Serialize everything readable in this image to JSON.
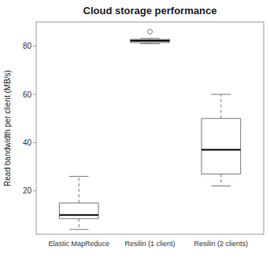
{
  "chart_data": {
    "type": "box",
    "title": "Cloud storage performance",
    "ylabel": "Read bandwidth per client (MB/s)",
    "categories": [
      "Elastic MapReduce",
      "Resilin (1 client)",
      "Resilin (2 clients)"
    ],
    "boxes": [
      {
        "whislo": 4.0,
        "q1": 8.5,
        "med": 10.0,
        "q3": 15.0,
        "whishi": 26.0,
        "fliers": []
      },
      {
        "whislo": 81.0,
        "q1": 81.5,
        "med": 82.3,
        "q3": 82.8,
        "whishi": 83.2,
        "fliers": [
          86.0
        ]
      },
      {
        "whislo": 22.0,
        "q1": 27.0,
        "med": 37.0,
        "q3": 50.0,
        "whishi": 60.0,
        "fliers": []
      }
    ],
    "colors": [
      "#ffffff",
      "#c8c8c8",
      "#ffffff"
    ],
    "ylim": [
      2,
      90
    ],
    "yticks": [
      20,
      40,
      60,
      80
    ],
    "grid": false
  }
}
